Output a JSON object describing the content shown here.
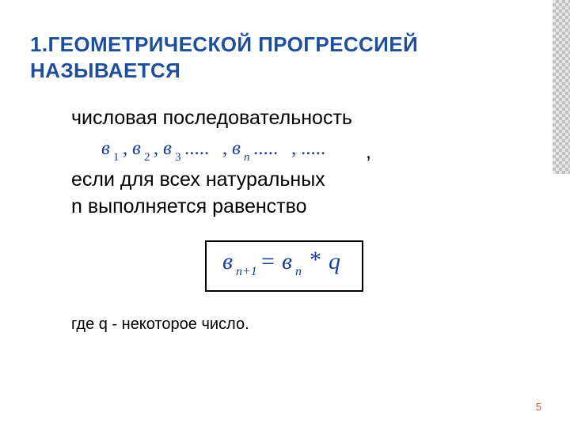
{
  "colors": {
    "title": "#1f4e9c",
    "math": "#1a3f9a",
    "text": "#000000",
    "pagenum": "#b85c3e",
    "border": "#000000",
    "checker_dark": "#bfbfbf",
    "checker_light": "#e6e6e6",
    "background": "#ffffff"
  },
  "title": "1.ГЕОМЕТРИЧЕСКОЙ ПРОГРЕССИЕЙ НАЗЫВАЕТСЯ",
  "line1": "числовая последовательность",
  "after_seq_comma": ",",
  "line2": "если для всех натуральных",
  "line3": "n выполняется равенство",
  "footnote": "где q - некоторое число.",
  "pagenum": "5",
  "sequence": {
    "variable": "в",
    "math_color": "#1a3f9a",
    "font_style": "italic",
    "font_family": "Times New Roman, serif",
    "base_fontsize": 25,
    "sub_fontsize": 15,
    "terms": [
      "1",
      "2",
      "3",
      "n"
    ],
    "ellipsis_after_index": [
      2,
      3
    ],
    "final_ellipsis": true
  },
  "formula": {
    "math_color": "#1a3f9a",
    "font_style": "italic",
    "font_family": "Times New Roman, serif",
    "variable": "в",
    "lhs_sub": "n+1",
    "rhs_sub": "n",
    "op1": "=",
    "op2": "*",
    "rhs_var2": "q",
    "base_fontsize": 30,
    "sub_fontsize": 16
  }
}
